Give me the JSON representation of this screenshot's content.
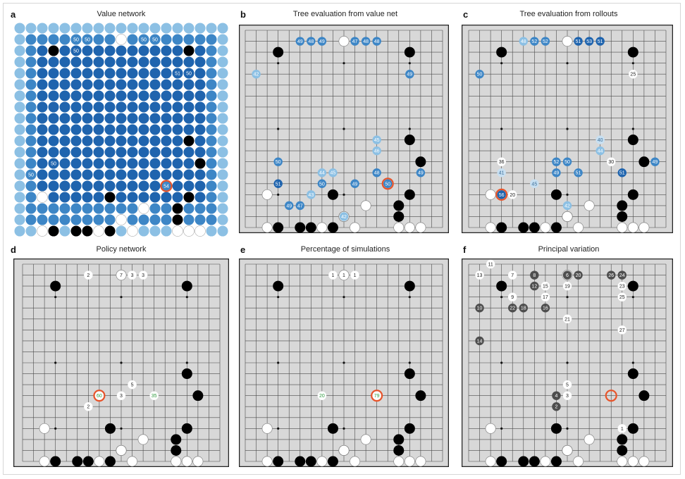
{
  "colors": {
    "board_bg": "#d8d8d8",
    "grid": "#4a4a4a",
    "black_stone": "#000000",
    "white_stone": "#ffffff",
    "highlight_ring": "#e8542a",
    "policy_green": "#2e9a3e",
    "value_dark": "#1f64ae",
    "value_mid": "#3d86c6",
    "value_light": "#8cc0e4",
    "value_pale": "#c8e0f2",
    "variation_grey": "#4e4e4e"
  },
  "panels": [
    {
      "letter": "a",
      "title": "Value network"
    },
    {
      "letter": "b",
      "title": "Tree evaluation from value net"
    },
    {
      "letter": "c",
      "title": "Tree evaluation from rollouts"
    },
    {
      "letter": "d",
      "title": "Policy network"
    },
    {
      "letter": "e",
      "title": "Percentage of simulations"
    },
    {
      "letter": "f",
      "title": "Principal variation"
    }
  ],
  "position": {
    "black": [
      [
        3,
        2
      ],
      [
        15,
        2
      ],
      [
        15,
        10
      ],
      [
        16,
        12
      ],
      [
        8,
        15
      ],
      [
        15,
        15
      ],
      [
        14,
        16
      ],
      [
        14,
        17
      ],
      [
        3,
        18
      ],
      [
        5,
        18
      ],
      [
        6,
        18
      ],
      [
        9,
        17
      ],
      [
        8,
        18
      ],
      [
        8,
        19
      ],
      [
        9,
        19
      ],
      [
        10,
        19
      ],
      [
        11,
        19
      ],
      [
        9,
        20
      ],
      [
        10,
        20
      ],
      [
        11,
        20
      ],
      [
        12,
        20
      ]
    ],
    "white": [
      [
        9,
        1
      ],
      [
        2,
        15
      ],
      [
        2,
        18
      ],
      [
        11,
        16
      ],
      [
        9,
        17
      ],
      [
        10,
        18
      ],
      [
        3,
        19
      ],
      [
        4,
        19
      ],
      [
        12,
        19
      ],
      [
        2,
        19
      ],
      [
        4,
        20
      ],
      [
        13,
        19
      ],
      [
        16,
        18
      ],
      [
        15,
        18
      ],
      [
        7,
        18
      ],
      [
        14,
        18
      ]
    ]
  },
  "value_network": {
    "labels": [
      {
        "x": 5,
        "y": 1,
        "text": "50"
      },
      {
        "x": 6,
        "y": 1,
        "text": "50"
      },
      {
        "x": 11,
        "y": 1,
        "text": "50"
      },
      {
        "x": 12,
        "y": 1,
        "text": "50"
      },
      {
        "x": 5,
        "y": 2,
        "text": "50"
      },
      {
        "x": 14,
        "y": 4,
        "text": "51"
      },
      {
        "x": 15,
        "y": 4,
        "text": "50"
      },
      {
        "x": 3,
        "y": 12,
        "text": "50"
      },
      {
        "x": 1,
        "y": 13,
        "text": "50"
      },
      {
        "x": 13,
        "y": 14,
        "text": "54"
      }
    ],
    "highlight": {
      "x": 13,
      "y": 14
    }
  },
  "tree_value": {
    "labels": [
      {
        "x": 5,
        "y": 1,
        "text": "49",
        "tone": "mid"
      },
      {
        "x": 6,
        "y": 1,
        "text": "48",
        "tone": "mid"
      },
      {
        "x": 7,
        "y": 1,
        "text": "49",
        "tone": "mid"
      },
      {
        "x": 10,
        "y": 1,
        "text": "47",
        "tone": "mid"
      },
      {
        "x": 11,
        "y": 1,
        "text": "48",
        "tone": "mid"
      },
      {
        "x": 12,
        "y": 1,
        "text": "48",
        "tone": "mid"
      },
      {
        "x": 1,
        "y": 4,
        "text": "42",
        "tone": "light"
      },
      {
        "x": 15,
        "y": 4,
        "text": "49",
        "tone": "mid"
      },
      {
        "x": 12,
        "y": 10,
        "text": "45",
        "tone": "light"
      },
      {
        "x": 12,
        "y": 11,
        "text": "46",
        "tone": "light"
      },
      {
        "x": 3,
        "y": 12,
        "text": "50",
        "tone": "mid"
      },
      {
        "x": 7,
        "y": 13,
        "text": "44",
        "tone": "light"
      },
      {
        "x": 8,
        "y": 13,
        "text": "45",
        "tone": "light"
      },
      {
        "x": 16,
        "y": 13,
        "text": "49",
        "tone": "mid"
      },
      {
        "x": 12,
        "y": 13,
        "text": "48",
        "tone": "mid"
      },
      {
        "x": 3,
        "y": 14,
        "text": "51",
        "tone": "dark"
      },
      {
        "x": 7,
        "y": 14,
        "text": "50",
        "tone": "mid"
      },
      {
        "x": 10,
        "y": 14,
        "text": "49",
        "tone": "mid"
      },
      {
        "x": 13,
        "y": 14,
        "text": "50",
        "tone": "mid"
      },
      {
        "x": 6,
        "y": 15,
        "text": "43",
        "tone": "light"
      },
      {
        "x": 4,
        "y": 16,
        "text": "49",
        "tone": "mid"
      },
      {
        "x": 5,
        "y": 16,
        "text": "47",
        "tone": "mid"
      },
      {
        "x": 9,
        "y": 17,
        "text": "42",
        "tone": "light"
      }
    ],
    "highlight": {
      "x": 13,
      "y": 14
    }
  },
  "tree_rollouts": {
    "labels": [
      {
        "x": 5,
        "y": 1,
        "text": "48",
        "tone": "light"
      },
      {
        "x": 6,
        "y": 1,
        "text": "52",
        "tone": "mid"
      },
      {
        "x": 7,
        "y": 1,
        "text": "52",
        "tone": "mid"
      },
      {
        "x": 10,
        "y": 1,
        "text": "51",
        "tone": "dark"
      },
      {
        "x": 11,
        "y": 1,
        "text": "53",
        "tone": "dark"
      },
      {
        "x": 12,
        "y": 1,
        "text": "51",
        "tone": "dark"
      },
      {
        "x": 1,
        "y": 4,
        "text": "50",
        "tone": "mid"
      },
      {
        "x": 15,
        "y": 4,
        "text": "25",
        "tone": "plain"
      },
      {
        "x": 12,
        "y": 10,
        "text": "40",
        "tone": "pale"
      },
      {
        "x": 12,
        "y": 11,
        "text": "44",
        "tone": "light"
      },
      {
        "x": 3,
        "y": 12,
        "text": "36",
        "tone": "plain"
      },
      {
        "x": 8,
        "y": 12,
        "text": "52",
        "tone": "mid"
      },
      {
        "x": 9,
        "y": 12,
        "text": "50",
        "tone": "mid"
      },
      {
        "x": 13,
        "y": 12,
        "text": "30",
        "tone": "plain"
      },
      {
        "x": 17,
        "y": 12,
        "text": "49",
        "tone": "mid"
      },
      {
        "x": 3,
        "y": 13,
        "text": "41",
        "tone": "pale"
      },
      {
        "x": 8,
        "y": 13,
        "text": "49",
        "tone": "mid"
      },
      {
        "x": 10,
        "y": 13,
        "text": "51",
        "tone": "mid"
      },
      {
        "x": 14,
        "y": 13,
        "text": "51",
        "tone": "dark"
      },
      {
        "x": 6,
        "y": 14,
        "text": "45",
        "tone": "pale"
      },
      {
        "x": 3,
        "y": 15,
        "text": "56",
        "tone": "dark"
      },
      {
        "x": 4,
        "y": 15,
        "text": "20",
        "tone": "plain"
      },
      {
        "x": 9,
        "y": 16,
        "text": "42",
        "tone": "light"
      }
    ],
    "highlight": {
      "x": 3,
      "y": 15
    }
  },
  "policy_network": {
    "labels": [
      {
        "x": 6,
        "y": 1,
        "text": "2"
      },
      {
        "x": 9,
        "y": 1,
        "text": "7"
      },
      {
        "x": 10,
        "y": 1,
        "text": "3"
      },
      {
        "x": 11,
        "y": 1,
        "text": "3"
      },
      {
        "x": 10,
        "y": 11,
        "text": "5"
      },
      {
        "x": 7,
        "y": 12,
        "text": "60",
        "tone": "green"
      },
      {
        "x": 9,
        "y": 12,
        "text": "3"
      },
      {
        "x": 12,
        "y": 12,
        "text": "35",
        "tone": "green"
      },
      {
        "x": 6,
        "y": 13,
        "text": "2"
      }
    ],
    "highlight": {
      "x": 7,
      "y": 12
    }
  },
  "simulations": {
    "labels": [
      {
        "x": 8,
        "y": 1,
        "text": "1"
      },
      {
        "x": 9,
        "y": 1,
        "text": "1"
      },
      {
        "x": 10,
        "y": 1,
        "text": "1"
      },
      {
        "x": 7,
        "y": 12,
        "text": "20",
        "tone": "green"
      },
      {
        "x": 12,
        "y": 12,
        "text": "79",
        "tone": "green"
      }
    ],
    "highlight": {
      "x": 12,
      "y": 12
    }
  },
  "principal_variation": {
    "labels": [
      {
        "x": 2,
        "y": 0,
        "text": "11",
        "stone": "white"
      },
      {
        "x": 1,
        "y": 1,
        "text": "13",
        "stone": "white"
      },
      {
        "x": 4,
        "y": 1,
        "text": "7",
        "stone": "white"
      },
      {
        "x": 6,
        "y": 1,
        "text": "8",
        "stone": "grey"
      },
      {
        "x": 9,
        "y": 1,
        "text": "6",
        "stone": "grey"
      },
      {
        "x": 10,
        "y": 1,
        "text": "20",
        "stone": "grey"
      },
      {
        "x": 13,
        "y": 1,
        "text": "26",
        "stone": "grey"
      },
      {
        "x": 14,
        "y": 1,
        "text": "24",
        "stone": "grey"
      },
      {
        "x": 6,
        "y": 2,
        "text": "12",
        "stone": "grey"
      },
      {
        "x": 7,
        "y": 2,
        "text": "15",
        "stone": "white"
      },
      {
        "x": 9,
        "y": 2,
        "text": "19",
        "stone": "white"
      },
      {
        "x": 14,
        "y": 2,
        "text": "23",
        "stone": "white"
      },
      {
        "x": 4,
        "y": 3,
        "text": "9",
        "stone": "white"
      },
      {
        "x": 7,
        "y": 3,
        "text": "17",
        "stone": "white"
      },
      {
        "x": 14,
        "y": 3,
        "text": "25",
        "stone": "white"
      },
      {
        "x": 1,
        "y": 4,
        "text": "10",
        "stone": "grey"
      },
      {
        "x": 4,
        "y": 4,
        "text": "22",
        "stone": "grey"
      },
      {
        "x": 5,
        "y": 4,
        "text": "18",
        "stone": "grey"
      },
      {
        "x": 7,
        "y": 4,
        "text": "16",
        "stone": "grey"
      },
      {
        "x": 9,
        "y": 5,
        "text": "21",
        "stone": "white"
      },
      {
        "x": 14,
        "y": 6,
        "text": "27",
        "stone": "white"
      },
      {
        "x": 1,
        "y": 7,
        "text": "14",
        "stone": "grey"
      },
      {
        "x": 9,
        "y": 11,
        "text": "5",
        "stone": "white"
      },
      {
        "x": 8,
        "y": 12,
        "text": "4",
        "stone": "grey"
      },
      {
        "x": 9,
        "y": 12,
        "text": "3",
        "stone": "white"
      },
      {
        "x": 8,
        "y": 13,
        "text": "2",
        "stone": "grey"
      },
      {
        "x": 14,
        "y": 15,
        "text": "1",
        "stone": "white"
      }
    ],
    "highlight": {
      "x": 13,
      "y": 12
    }
  }
}
